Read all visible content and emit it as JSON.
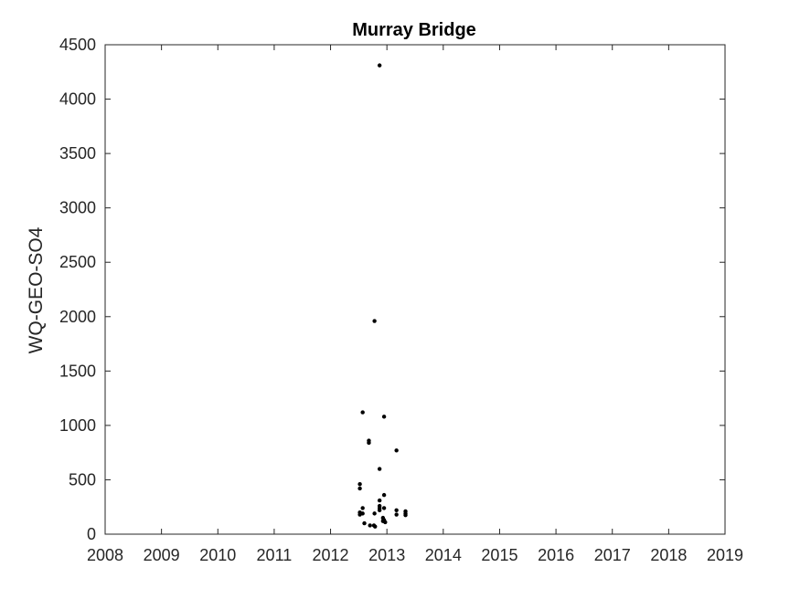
{
  "chart_data": {
    "type": "scatter",
    "title": "Murray Bridge",
    "xlabel": "",
    "ylabel": "WQ-GEO-SO4",
    "xlim": [
      2008,
      2019
    ],
    "ylim": [
      0,
      4500
    ],
    "xticks": [
      2008,
      2009,
      2010,
      2011,
      2012,
      2013,
      2014,
      2015,
      2016,
      2017,
      2018,
      2019
    ],
    "yticks": [
      0,
      500,
      1000,
      1500,
      2000,
      2500,
      3000,
      3500,
      4000,
      4500
    ],
    "grid": false,
    "marker_color": "#000000",
    "series": [
      {
        "points": [
          {
            "x": 2012.87,
            "y": 4310
          },
          {
            "x": 2012.78,
            "y": 1960
          },
          {
            "x": 2012.57,
            "y": 1120
          },
          {
            "x": 2012.95,
            "y": 1080
          },
          {
            "x": 2012.68,
            "y": 860
          },
          {
            "x": 2012.68,
            "y": 840
          },
          {
            "x": 2013.17,
            "y": 770
          },
          {
            "x": 2012.87,
            "y": 600
          },
          {
            "x": 2012.52,
            "y": 460
          },
          {
            "x": 2012.52,
            "y": 420
          },
          {
            "x": 2012.95,
            "y": 360
          },
          {
            "x": 2012.87,
            "y": 310
          },
          {
            "x": 2012.87,
            "y": 260
          },
          {
            "x": 2012.57,
            "y": 240
          },
          {
            "x": 2012.87,
            "y": 240
          },
          {
            "x": 2012.95,
            "y": 240
          },
          {
            "x": 2012.87,
            "y": 220
          },
          {
            "x": 2013.17,
            "y": 220
          },
          {
            "x": 2013.33,
            "y": 210
          },
          {
            "x": 2012.52,
            "y": 200
          },
          {
            "x": 2012.57,
            "y": 190
          },
          {
            "x": 2012.78,
            "y": 190
          },
          {
            "x": 2013.33,
            "y": 190
          },
          {
            "x": 2012.52,
            "y": 180
          },
          {
            "x": 2013.17,
            "y": 180
          },
          {
            "x": 2013.33,
            "y": 175
          },
          {
            "x": 2012.93,
            "y": 150
          },
          {
            "x": 2012.95,
            "y": 130
          },
          {
            "x": 2012.93,
            "y": 120
          },
          {
            "x": 2012.97,
            "y": 110
          },
          {
            "x": 2012.6,
            "y": 100
          },
          {
            "x": 2012.7,
            "y": 80
          },
          {
            "x": 2012.77,
            "y": 80
          },
          {
            "x": 2012.79,
            "y": 70
          }
        ]
      }
    ]
  }
}
